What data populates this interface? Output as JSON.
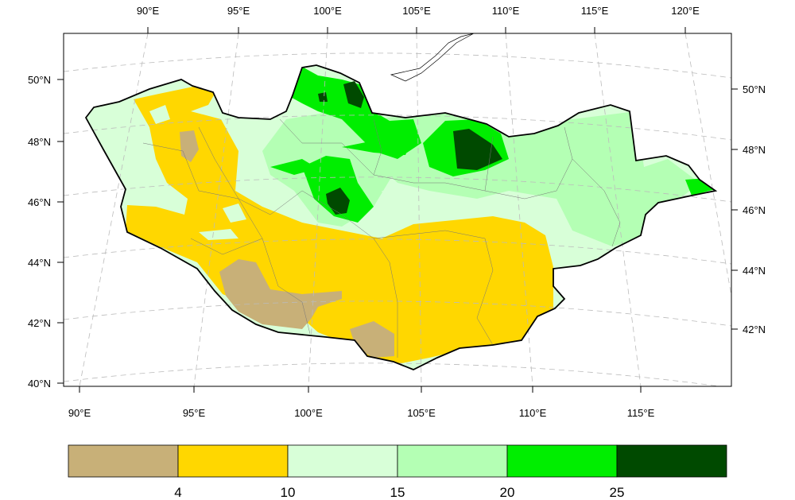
{
  "map": {
    "top_lon_labels": [
      "90°E",
      "95°E",
      "100°E",
      "105°E",
      "110°E",
      "115°E",
      "120°E"
    ],
    "bottom_lon_labels": [
      "90°E",
      "95°E",
      "100°E",
      "105°E",
      "110°E",
      "115°E"
    ],
    "left_lat_labels": [
      "50°N",
      "48°N",
      "46°N",
      "44°N",
      "42°N",
      "40°N"
    ],
    "right_lat_labels": [
      "50°N",
      "48°N",
      "46°N",
      "44°N",
      "42°N"
    ]
  },
  "colorbar": {
    "colors": [
      "#c8b078",
      "#ffd700",
      "#d8ffd8",
      "#b4ffb4",
      "#00ee00",
      "#004a00"
    ],
    "labels": [
      "4",
      "10",
      "15",
      "20",
      "25"
    ]
  }
}
